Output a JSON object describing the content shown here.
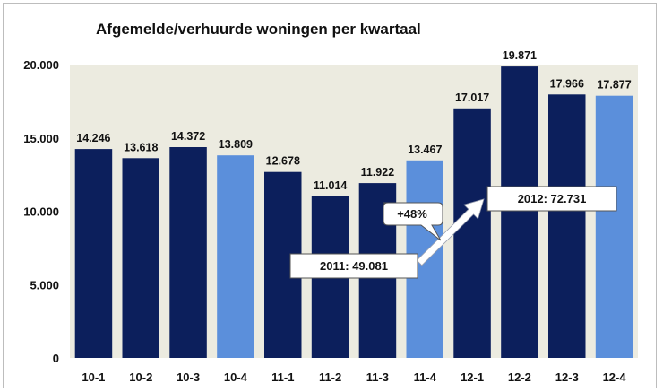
{
  "chart_data": {
    "type": "bar",
    "title": "Afgemelde/verhuurde woningen per kwartaal",
    "xlabel": "",
    "ylabel": "",
    "categories": [
      "10-1",
      "10-2",
      "10-3",
      "10-4",
      "11-1",
      "11-2",
      "11-3",
      "11-4",
      "12-1",
      "12-2",
      "12-3",
      "12-4"
    ],
    "values": [
      14246,
      13618,
      14372,
      13809,
      12678,
      11014,
      11922,
      13467,
      17017,
      19871,
      17966,
      17877
    ],
    "data_labels": [
      "14.246",
      "13.618",
      "14.372",
      "13.809",
      "12.678",
      "11.014",
      "11.922",
      "13.467",
      "17.017",
      "19.871",
      "17.966",
      "17.877"
    ],
    "highlight": [
      false,
      false,
      false,
      true,
      false,
      false,
      false,
      true,
      false,
      false,
      false,
      true
    ],
    "ylim": [
      0,
      20000
    ],
    "yticks": [
      0,
      5000,
      10000,
      15000,
      20000
    ],
    "ytick_labels": [
      "0",
      "5.000",
      "10.000",
      "15.000",
      "20.000"
    ],
    "grid": false,
    "legend": "none",
    "colors": {
      "bar": "#0c1f5c",
      "highlight": "#5b8fdb",
      "plot_bg": "#ecebe0",
      "arrow": "#ffffff"
    },
    "annotations": {
      "total_2011": "2011: 49.081",
      "total_2012": "2012: 72.731",
      "growth": "+48%"
    }
  }
}
